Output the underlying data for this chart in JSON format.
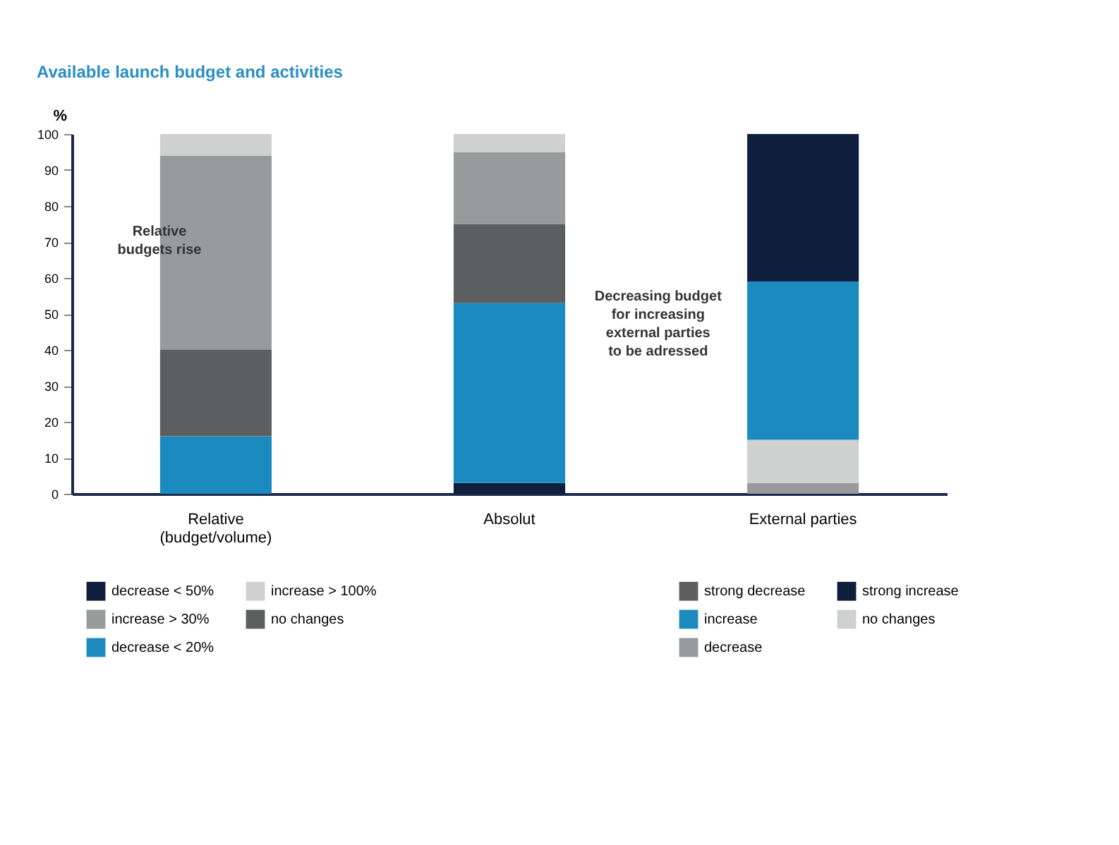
{
  "chart_data": {
    "type": "bar",
    "stacked": true,
    "title": "Available launch budget and activities",
    "ylabel": "%",
    "categories": [
      "Relative\n(budget/volume)",
      "Absolut",
      "External parties"
    ],
    "series": [
      {
        "name": "decrease < 50%",
        "color": "#0f1e3c",
        "values": [
          0,
          3,
          null
        ]
      },
      {
        "name": "decrease < 20%",
        "color": "#1b8bbf",
        "values": [
          16,
          50,
          null
        ]
      },
      {
        "name": "no changes",
        "color": "#5c5f60",
        "values": [
          24,
          22,
          null
        ]
      },
      {
        "name": "increase > 30%",
        "color": "#999a9b",
        "values": [
          54,
          20,
          null
        ]
      },
      {
        "name": "increase > 100%",
        "color": "#cfd0d0",
        "values": [
          6,
          5,
          null
        ]
      },
      {
        "name": "strong decrease",
        "color": "#5c5f60",
        "values": [
          null,
          null,
          0
        ]
      },
      {
        "name": "decrease",
        "color": "#999a9b",
        "values": [
          null,
          null,
          3
        ]
      },
      {
        "name": "no changes",
        "color": "#cfd0d0",
        "values": [
          null,
          null,
          12
        ]
      },
      {
        "name": "increase",
        "color": "#1b8bbf",
        "values": [
          null,
          null,
          44
        ]
      },
      {
        "name": "strong increase",
        "color": "#0f1e3c",
        "values": [
          null,
          null,
          41
        ]
      }
    ],
    "ylim": [
      0,
      100
    ],
    "yticks": [
      0,
      10,
      20,
      30,
      40,
      50,
      60,
      70,
      80,
      90,
      100
    ],
    "grid": false,
    "legend": "bottom",
    "annotations": [
      "Relative\nbudgets rise",
      "Decreasing budget\nfor increasing\nexternal parties\nto be adressed"
    ]
  }
}
